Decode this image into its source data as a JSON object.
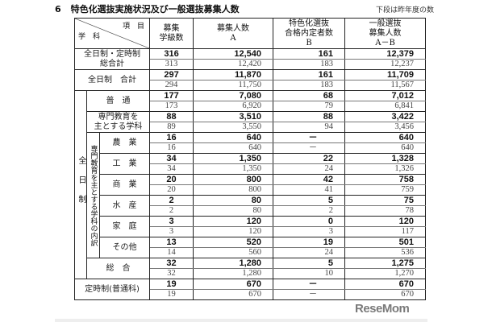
{
  "title": {
    "number": "6",
    "text": "特色化選抜実施状況及び一般選抜募集人数"
  },
  "note": "下段は昨年度の数",
  "header": {
    "corner_top": "項　目",
    "corner_bottom": "学　科",
    "col1": "募集\n学級数",
    "col2": "募集人数\nA",
    "col3": "特色化選抜\n合格内定者数\nB",
    "col4": "一般選抜\n募集人数\nA－B"
  },
  "groups": {
    "zennichi_vertical": "全日制",
    "senmon_breakdown_vertical": "専門教育を主とする学科の内訳"
  },
  "rows": [
    {
      "label": "全日制・定時制\n総合計",
      "current": [
        "316",
        "12,540",
        "161",
        "12,379"
      ],
      "previous": [
        "313",
        "12,420",
        "183",
        "12,237"
      ]
    },
    {
      "label": "全日制　合計",
      "current": [
        "297",
        "11,870",
        "161",
        "11,709"
      ],
      "previous": [
        "294",
        "11,750",
        "183",
        "11,567"
      ]
    },
    {
      "label": "普　通",
      "current": [
        "177",
        "7,080",
        "68",
        "7,012"
      ],
      "previous": [
        "173",
        "6,920",
        "79",
        "6,841"
      ]
    },
    {
      "label": "専門教育を\n主とする学科",
      "current": [
        "88",
        "3,510",
        "88",
        "3,422"
      ],
      "previous": [
        "89",
        "3,550",
        "94",
        "3,456"
      ]
    },
    {
      "label": "農　業",
      "current": [
        "16",
        "640",
        "－",
        "640"
      ],
      "previous": [
        "16",
        "640",
        "－",
        "640"
      ]
    },
    {
      "label": "工　業",
      "current": [
        "34",
        "1,350",
        "22",
        "1,328"
      ],
      "previous": [
        "34",
        "1,350",
        "24",
        "1,326"
      ]
    },
    {
      "label": "商　業",
      "current": [
        "20",
        "800",
        "42",
        "758"
      ],
      "previous": [
        "20",
        "800",
        "41",
        "759"
      ]
    },
    {
      "label": "水　産",
      "current": [
        "2",
        "80",
        "5",
        "75"
      ],
      "previous": [
        "2",
        "80",
        "2",
        "78"
      ]
    },
    {
      "label": "家　庭",
      "current": [
        "3",
        "120",
        "0",
        "120"
      ],
      "previous": [
        "3",
        "120",
        "3",
        "117"
      ]
    },
    {
      "label": "その他",
      "current": [
        "13",
        "520",
        "19",
        "501"
      ],
      "previous": [
        "14",
        "560",
        "24",
        "536"
      ]
    },
    {
      "label": "総　合",
      "current": [
        "32",
        "1,280",
        "5",
        "1,275"
      ],
      "previous": [
        "32",
        "1,280",
        "10",
        "1,270"
      ]
    },
    {
      "label": "定時制(普通科)",
      "current": [
        "19",
        "670",
        "－",
        "670"
      ],
      "previous": [
        "19",
        "670",
        "－",
        "670"
      ]
    }
  ],
  "logo": "ReseMom"
}
